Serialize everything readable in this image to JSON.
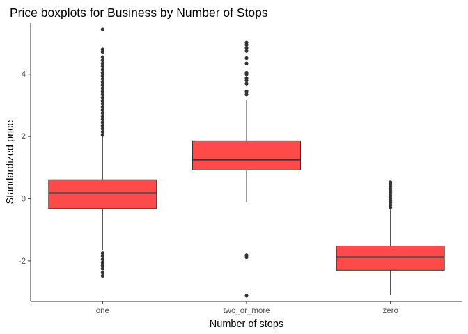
{
  "chart_data": {
    "type": "boxplot",
    "title": "Price boxplots for Business by Number of Stops",
    "xlabel": "Number of stops",
    "ylabel": "Standardized price",
    "ylim": [
      -3.3,
      5.65
    ],
    "yticks": [
      -2,
      0,
      2,
      4
    ],
    "grid": false,
    "legend": "none",
    "categories": [
      "one",
      "two_or_more",
      "zero"
    ],
    "boxes": [
      {
        "category": "one",
        "q1": -0.32,
        "median": 0.18,
        "q3": 0.61,
        "whisker_low": -1.67,
        "whisker_high": 2.0,
        "outliers_high": [
          2.05,
          2.15,
          2.25,
          2.35,
          2.45,
          2.55,
          2.65,
          2.75,
          2.85,
          2.95,
          3.05,
          3.15,
          3.25,
          3.35,
          3.45,
          3.55,
          3.65,
          3.75,
          3.85,
          3.95,
          4.05,
          4.15,
          4.25,
          4.35,
          4.45,
          4.55,
          4.72,
          4.8,
          5.45
        ],
        "outliers_low": [
          -1.75,
          -1.85,
          -1.95,
          -2.05,
          -2.15,
          -2.25,
          -2.38,
          -2.48
        ]
      },
      {
        "category": "two_or_more",
        "q1": 0.92,
        "median": 1.25,
        "q3": 1.86,
        "whisker_low": -0.12,
        "whisker_high": 3.18,
        "outliers_high": [
          3.35,
          3.45,
          3.7,
          3.8,
          3.88,
          4.0,
          4.05,
          4.35,
          4.52,
          4.75,
          4.85,
          4.95,
          5.02
        ],
        "outliers_low": [
          -1.82,
          -1.88,
          -3.12
        ]
      },
      {
        "category": "zero",
        "q1": -2.3,
        "median": -1.88,
        "q3": -1.52,
        "whisker_low": -3.1,
        "whisker_high": -0.35,
        "outliers_high": [
          -0.28,
          -0.2,
          -0.12,
          -0.05,
          0.02,
          0.1,
          0.18,
          0.25,
          0.32,
          0.4,
          0.47,
          0.53
        ],
        "outliers_low": []
      }
    ],
    "colors": {
      "box_fill": "#FF4A4A",
      "box_line": "#333333",
      "outlier": "#333333",
      "axis": "#333333"
    }
  }
}
